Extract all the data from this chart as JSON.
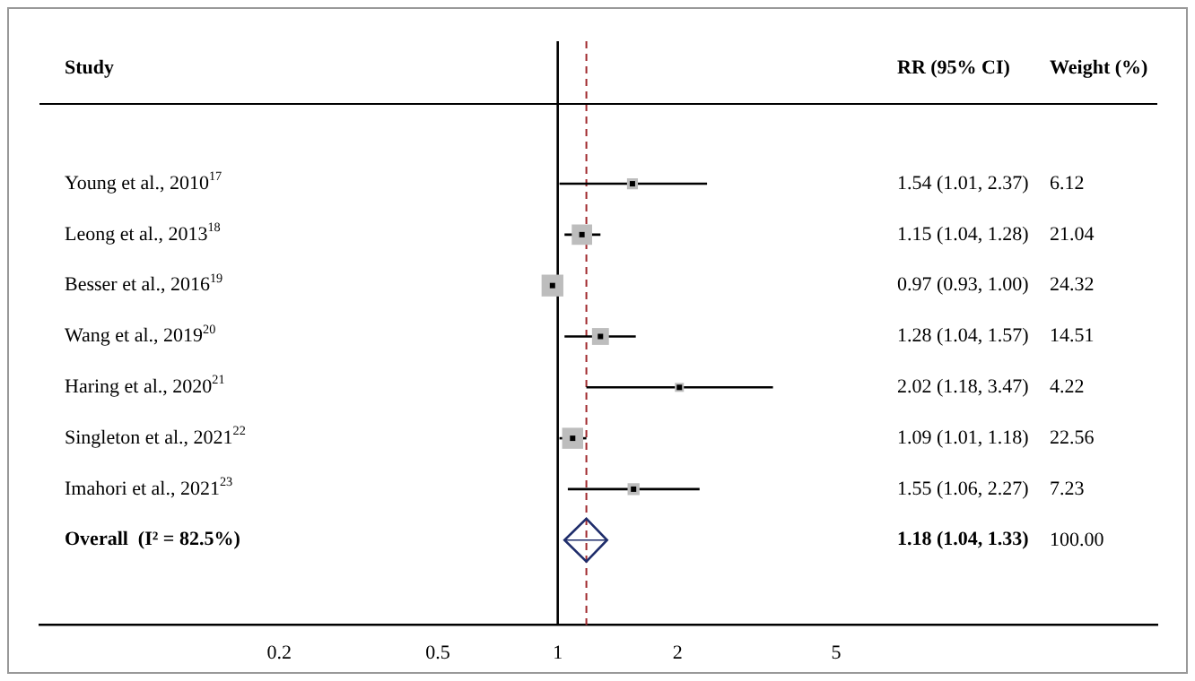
{
  "chart_data": {
    "type": "scatter",
    "orientation": "horizontal",
    "log": "x",
    "xlim": [
      0.05,
      32
    ],
    "xticks": [
      0.2,
      0.5,
      1,
      2,
      5
    ],
    "tick_labels": "x",
    "grid": false,
    "legend": false,
    "categories": [
      "Young et al., 2010$^{17}$",
      "Leong et al., 2013$^{18}$",
      "Besser et al., 2016$^{19}$",
      "Wang et al., 2019$^{20}$",
      "Haring et al., 2020$^{21}$",
      "Singleton et al., 2021$^{22}$",
      "Imahori et al., 2021$^{23}$",
      "Overall  (I² = 82.5%)"
    ],
    "series": [
      {
        "color": "#bdbdbd",
        "marker": "square",
        "values": [
          1.54,
          1.15,
          0.97,
          1.28,
          2.02,
          1.09,
          1.55,
          null
        ],
        "errors": [
          [
            1.01,
            2.37
          ],
          [
            1.04,
            1.28
          ],
          [
            0.93,
            1.0
          ],
          [
            1.04,
            1.57
          ],
          [
            1.18,
            3.47
          ],
          [
            1.01,
            1.18
          ],
          [
            1.06,
            2.27
          ],
          null
        ],
        "sizes": [
          0.25,
          0.87,
          1,
          0.6,
          0.17,
          0.93,
          0.3,
          null
        ]
      },
      {
        "color": "#1f2d6b",
        "marker": "diamond",
        "values": [
          null,
          null,
          null,
          null,
          null,
          null,
          null,
          1.18
        ],
        "errors": [
          null,
          null,
          null,
          null,
          null,
          null,
          null,
          [
            1.04,
            1.33
          ]
        ]
      }
    ],
    "ref_lines": [
      {
        "axis": "x",
        "value": 1,
        "color": "#000000",
        "line_style": "solid"
      },
      {
        "axis": "x",
        "value": 1.18,
        "color": "#a0282d",
        "line_style": "dashed"
      }
    ],
    "annotations": [
      "Study",
      "RR (95% CI)",
      "Weight (%)",
      "1.54 (1.01, 2.37)",
      "6.12",
      "1.15 (1.04, 1.28)",
      "21.04",
      "0.97 (0.93, 1.00)",
      "24.32",
      "1.28 (1.04, 1.57)",
      "14.51",
      "2.02 (1.18, 3.47)",
      "4.22",
      "1.09 (1.01, 1.18)",
      "22.56",
      "1.55 (1.06, 2.27)",
      "7.23",
      "1.18 (1.04, 1.33)",
      "100.00"
    ]
  }
}
